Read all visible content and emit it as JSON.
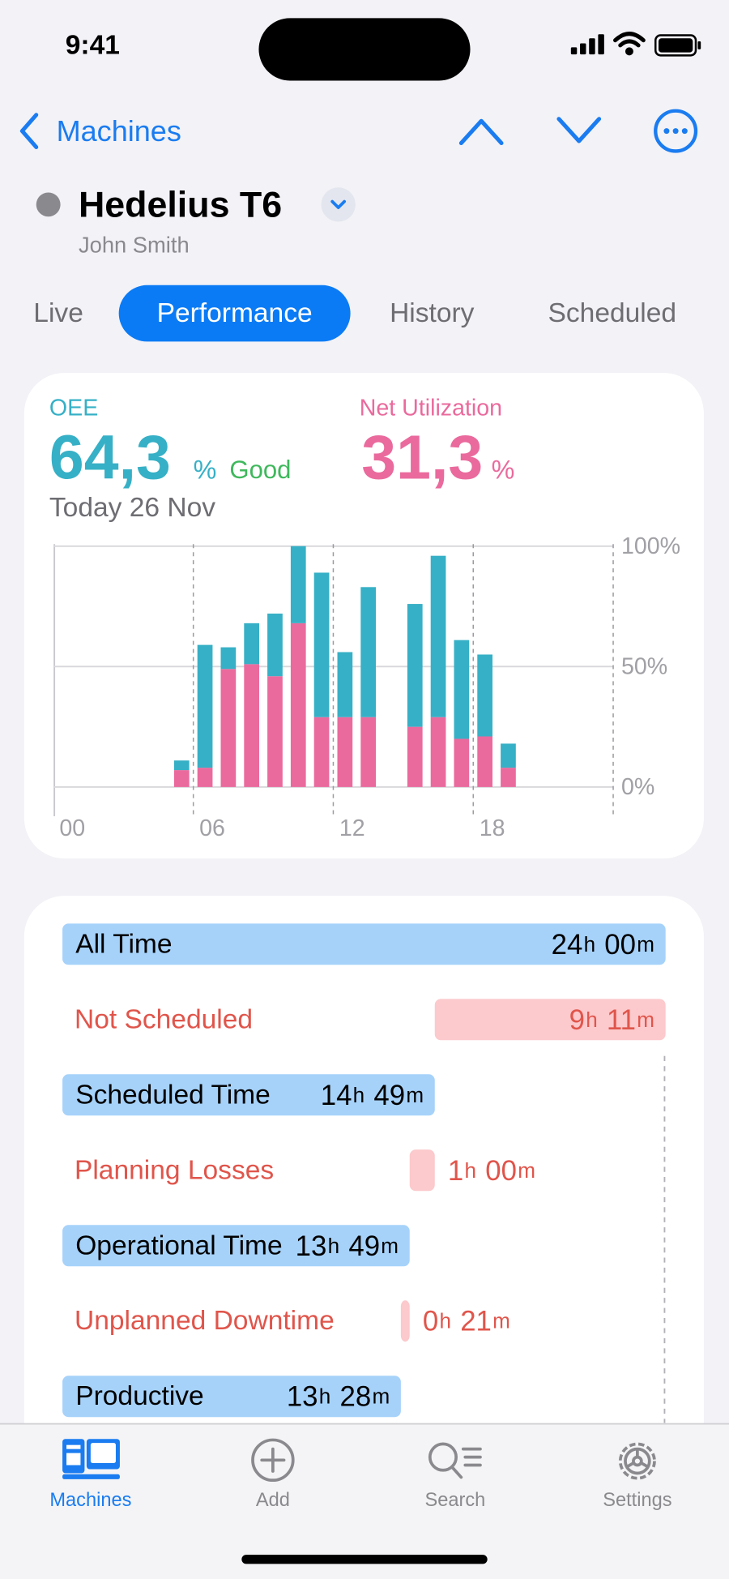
{
  "status_bar": {
    "time": "9:41"
  },
  "nav": {
    "back": "Machines"
  },
  "header": {
    "title": "Hedelius T6",
    "subtitle": "John Smith"
  },
  "tabs": {
    "items": [
      "Live",
      "Performance",
      "History",
      "Scheduled"
    ],
    "selected": 1
  },
  "summary": {
    "oee": "64,3",
    "net_utilization": "31,3",
    "unit": "%",
    "status": "Good",
    "date": "Today 26 Nov"
  },
  "chart_data": {
    "type": "bar",
    "stacked": true,
    "x": [
      5,
      6,
      7,
      8,
      9,
      10,
      11,
      12,
      13,
      15,
      16,
      17,
      18,
      19
    ],
    "series": [
      {
        "name": "Net Utilization",
        "color": "#ea6a9d",
        "values": [
          7,
          8,
          49,
          51,
          46,
          68,
          29,
          29,
          29,
          25,
          29,
          20,
          21,
          8
        ]
      },
      {
        "name": "OEE",
        "color": "#36b0c6",
        "values": [
          4,
          51,
          9,
          17,
          26,
          32,
          60,
          27,
          54,
          51,
          67,
          41,
          34,
          10
        ]
      }
    ],
    "xlim": [
      0,
      24
    ],
    "xticks": [
      {
        "value": 0,
        "label": "00"
      },
      {
        "value": 6,
        "label": "06"
      },
      {
        "value": 12,
        "label": "12"
      },
      {
        "value": 18,
        "label": "18"
      }
    ],
    "ylim": [
      0,
      100
    ],
    "yticks": [
      {
        "value": 0,
        "label": "0%"
      },
      {
        "value": 50,
        "label": "50%"
      },
      {
        "value": 100,
        "label": "100%"
      }
    ],
    "grid": true
  },
  "breakdown": {
    "hour_unit": "h",
    "minute_unit": "m",
    "rows": [
      {
        "label": "All Time",
        "kind": "total",
        "h": "24",
        "m": "00"
      },
      {
        "label": "Not Scheduled",
        "kind": "loss",
        "h": "9",
        "m": "11"
      },
      {
        "label": "Scheduled Time",
        "kind": "total",
        "h": "14",
        "m": "49"
      },
      {
        "label": "Planning Losses",
        "kind": "loss",
        "h": "1",
        "m": "00"
      },
      {
        "label": "Operational Time",
        "kind": "total",
        "h": "13",
        "m": "49"
      },
      {
        "label": "Unplanned Downtime",
        "kind": "loss",
        "h": "0",
        "m": "21"
      },
      {
        "label": "Productive",
        "kind": "total",
        "h": "13",
        "m": "28"
      }
    ]
  },
  "tab_bar": {
    "items": [
      "Machines",
      "Add",
      "Search",
      "Settings"
    ],
    "selected": 0
  }
}
